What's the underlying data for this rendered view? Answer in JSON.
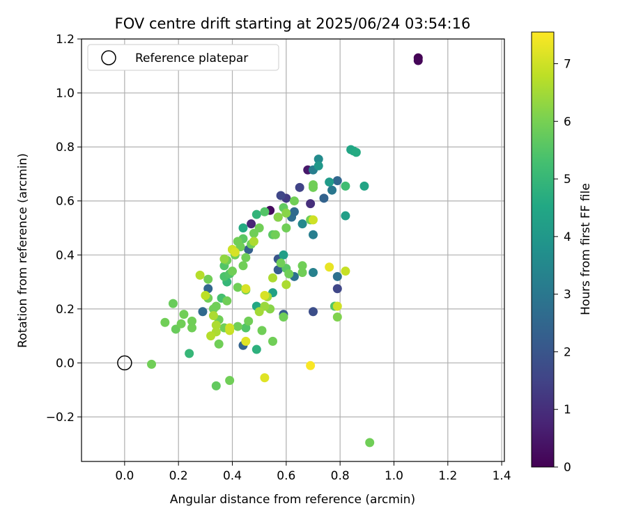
{
  "chart_data": {
    "type": "scatter",
    "title": "FOV centre drift starting at 2025/06/24 03:54:16",
    "xlabel": "Angular distance from reference (arcmin)",
    "ylabel": "Rotation from reference (arcmin)",
    "xlim": [
      -0.16,
      1.41
    ],
    "ylim": [
      -0.365,
      1.2
    ],
    "xticks": [
      "0.0",
      "0.2",
      "0.4",
      "0.6",
      "0.8",
      "1.0",
      "1.2",
      "1.4"
    ],
    "yticks": [
      "−0.2",
      "0.0",
      "0.2",
      "0.4",
      "0.6",
      "0.8",
      "1.0",
      "1.2"
    ],
    "grid": true,
    "legend": {
      "placement": "top-left",
      "entries": [
        "Reference platepar"
      ]
    },
    "reference_point": {
      "x": 0.0,
      "y": 0.0
    },
    "colorbar": {
      "label": "Hours from first FF file",
      "range": [
        0,
        7.55
      ],
      "ticks": [
        "0",
        "1",
        "2",
        "3",
        "4",
        "5",
        "6",
        "7"
      ],
      "colormap": "viridis"
    },
    "points": [
      {
        "x": 1.09,
        "y": 1.13,
        "c": 0.0
      },
      {
        "x": 1.09,
        "y": 1.12,
        "c": 0.1
      },
      {
        "x": 0.54,
        "y": 0.565,
        "c": 0.2
      },
      {
        "x": 0.68,
        "y": 0.715,
        "c": 0.5
      },
      {
        "x": 0.47,
        "y": 0.515,
        "c": 0.8
      },
      {
        "x": 0.69,
        "y": 0.59,
        "c": 1.0
      },
      {
        "x": 0.57,
        "y": 0.54,
        "c": 1.0
      },
      {
        "x": 0.6,
        "y": 0.61,
        "c": 1.3
      },
      {
        "x": 0.65,
        "y": 0.65,
        "c": 1.5
      },
      {
        "x": 0.58,
        "y": 0.62,
        "c": 1.6
      },
      {
        "x": 0.79,
        "y": 0.275,
        "c": 1.6
      },
      {
        "x": 0.7,
        "y": 0.19,
        "c": 1.8
      },
      {
        "x": 0.57,
        "y": 0.385,
        "c": 2.0
      },
      {
        "x": 0.57,
        "y": 0.345,
        "c": 2.2
      },
      {
        "x": 0.74,
        "y": 0.61,
        "c": 2.4
      },
      {
        "x": 0.79,
        "y": 0.675,
        "c": 2.5
      },
      {
        "x": 0.59,
        "y": 0.18,
        "c": 2.2
      },
      {
        "x": 0.31,
        "y": 0.275,
        "c": 2.5
      },
      {
        "x": 0.29,
        "y": 0.19,
        "c": 2.6
      },
      {
        "x": 0.44,
        "y": 0.065,
        "c": 2.4
      },
      {
        "x": 0.46,
        "y": 0.42,
        "c": 2.3
      },
      {
        "x": 0.62,
        "y": 0.54,
        "c": 2.7
      },
      {
        "x": 0.63,
        "y": 0.56,
        "c": 2.6
      },
      {
        "x": 0.63,
        "y": 0.32,
        "c": 2.8
      },
      {
        "x": 0.77,
        "y": 0.64,
        "c": 3.0
      },
      {
        "x": 0.79,
        "y": 0.32,
        "c": 2.8
      },
      {
        "x": 0.7,
        "y": 0.715,
        "c": 3.2
      },
      {
        "x": 0.7,
        "y": 0.335,
        "c": 3.3
      },
      {
        "x": 0.7,
        "y": 0.475,
        "c": 3.2
      },
      {
        "x": 0.72,
        "y": 0.755,
        "c": 3.6
      },
      {
        "x": 0.66,
        "y": 0.515,
        "c": 3.5
      },
      {
        "x": 0.72,
        "y": 0.73,
        "c": 4.0
      },
      {
        "x": 0.76,
        "y": 0.67,
        "c": 4.1
      },
      {
        "x": 0.82,
        "y": 0.545,
        "c": 4.2
      },
      {
        "x": 0.84,
        "y": 0.79,
        "c": 4.4
      },
      {
        "x": 0.85,
        "y": 0.785,
        "c": 4.5
      },
      {
        "x": 0.86,
        "y": 0.78,
        "c": 4.6
      },
      {
        "x": 0.89,
        "y": 0.655,
        "c": 4.4
      },
      {
        "x": 0.59,
        "y": 0.4,
        "c": 4.2
      },
      {
        "x": 0.55,
        "y": 0.26,
        "c": 4.3
      },
      {
        "x": 0.49,
        "y": 0.21,
        "c": 4.5
      },
      {
        "x": 0.49,
        "y": 0.05,
        "c": 4.8
      },
      {
        "x": 0.44,
        "y": 0.5,
        "c": 4.6
      },
      {
        "x": 0.38,
        "y": 0.3,
        "c": 5.0
      },
      {
        "x": 0.24,
        "y": 0.035,
        "c": 5.0
      },
      {
        "x": 0.49,
        "y": 0.55,
        "c": 4.9
      },
      {
        "x": 0.82,
        "y": 0.655,
        "c": 5.2
      },
      {
        "x": 0.78,
        "y": 0.21,
        "c": 5.5
      },
      {
        "x": 0.36,
        "y": 0.24,
        "c": 5.3
      },
      {
        "x": 0.37,
        "y": 0.36,
        "c": 5.5
      },
      {
        "x": 0.37,
        "y": 0.32,
        "c": 5.4
      },
      {
        "x": 0.39,
        "y": 0.33,
        "c": 5.5
      },
      {
        "x": 0.44,
        "y": 0.46,
        "c": 5.6
      },
      {
        "x": 0.52,
        "y": 0.56,
        "c": 5.5
      },
      {
        "x": 0.55,
        "y": 0.475,
        "c": 5.6
      },
      {
        "x": 0.59,
        "y": 0.575,
        "c": 5.7
      },
      {
        "x": 0.6,
        "y": 0.35,
        "c": 5.6
      },
      {
        "x": 0.45,
        "y": 0.13,
        "c": 5.5
      },
      {
        "x": 0.34,
        "y": -0.085,
        "c": 5.7
      },
      {
        "x": 0.18,
        "y": 0.22,
        "c": 5.8
      },
      {
        "x": 0.19,
        "y": 0.125,
        "c": 5.8
      },
      {
        "x": 0.15,
        "y": 0.15,
        "c": 5.9
      },
      {
        "x": 0.21,
        "y": 0.145,
        "c": 5.9
      },
      {
        "x": 0.22,
        "y": 0.18,
        "c": 5.9
      },
      {
        "x": 0.25,
        "y": 0.155,
        "c": 5.9
      },
      {
        "x": 0.25,
        "y": 0.13,
        "c": 5.9
      },
      {
        "x": 0.31,
        "y": 0.31,
        "c": 5.9
      },
      {
        "x": 0.31,
        "y": 0.24,
        "c": 5.9
      },
      {
        "x": 0.33,
        "y": 0.2,
        "c": 5.9
      },
      {
        "x": 0.34,
        "y": 0.21,
        "c": 5.9
      },
      {
        "x": 0.35,
        "y": 0.16,
        "c": 5.9
      },
      {
        "x": 0.35,
        "y": 0.07,
        "c": 5.9
      },
      {
        "x": 0.37,
        "y": 0.13,
        "c": 5.9
      },
      {
        "x": 0.38,
        "y": 0.23,
        "c": 5.9
      },
      {
        "x": 0.38,
        "y": 0.38,
        "c": 5.9
      },
      {
        "x": 0.4,
        "y": 0.34,
        "c": 5.9
      },
      {
        "x": 0.4,
        "y": 0.42,
        "c": 5.9
      },
      {
        "x": 0.41,
        "y": 0.4,
        "c": 5.9
      },
      {
        "x": 0.42,
        "y": 0.45,
        "c": 5.9
      },
      {
        "x": 0.42,
        "y": 0.28,
        "c": 5.9
      },
      {
        "x": 0.42,
        "y": 0.135,
        "c": 5.9
      },
      {
        "x": 0.43,
        "y": 0.43,
        "c": 5.9
      },
      {
        "x": 0.44,
        "y": 0.36,
        "c": 5.9
      },
      {
        "x": 0.45,
        "y": 0.39,
        "c": 5.9
      },
      {
        "x": 0.45,
        "y": 0.27,
        "c": 5.9
      },
      {
        "x": 0.46,
        "y": 0.155,
        "c": 5.9
      },
      {
        "x": 0.47,
        "y": 0.44,
        "c": 5.9
      },
      {
        "x": 0.48,
        "y": 0.48,
        "c": 5.9
      },
      {
        "x": 0.5,
        "y": 0.5,
        "c": 5.9
      },
      {
        "x": 0.51,
        "y": 0.12,
        "c": 5.9
      },
      {
        "x": 0.55,
        "y": 0.08,
        "c": 5.9
      },
      {
        "x": 0.56,
        "y": 0.475,
        "c": 5.9
      },
      {
        "x": 0.58,
        "y": 0.37,
        "c": 5.9
      },
      {
        "x": 0.59,
        "y": 0.17,
        "c": 5.9
      },
      {
        "x": 0.6,
        "y": 0.5,
        "c": 5.9
      },
      {
        "x": 0.61,
        "y": 0.33,
        "c": 5.9
      },
      {
        "x": 0.63,
        "y": 0.6,
        "c": 5.9
      },
      {
        "x": 0.66,
        "y": 0.36,
        "c": 5.9
      },
      {
        "x": 0.66,
        "y": 0.335,
        "c": 5.9
      },
      {
        "x": 0.69,
        "y": 0.53,
        "c": 5.9
      },
      {
        "x": 0.7,
        "y": 0.65,
        "c": 5.9
      },
      {
        "x": 0.7,
        "y": 0.66,
        "c": 5.9
      },
      {
        "x": 0.1,
        "y": -0.005,
        "c": 5.9
      },
      {
        "x": 0.39,
        "y": -0.065,
        "c": 5.9
      },
      {
        "x": 0.91,
        "y": -0.295,
        "c": 5.9
      },
      {
        "x": 0.79,
        "y": 0.17,
        "c": 6.1
      },
      {
        "x": 0.54,
        "y": 0.2,
        "c": 6.2
      },
      {
        "x": 0.57,
        "y": 0.54,
        "c": 6.2
      },
      {
        "x": 0.6,
        "y": 0.555,
        "c": 6.2
      },
      {
        "x": 0.37,
        "y": 0.385,
        "c": 6.3
      },
      {
        "x": 0.52,
        "y": 0.21,
        "c": 6.4
      },
      {
        "x": 0.53,
        "y": 0.245,
        "c": 6.5
      },
      {
        "x": 0.5,
        "y": 0.19,
        "c": 6.5
      },
      {
        "x": 0.48,
        "y": 0.45,
        "c": 6.6
      },
      {
        "x": 0.55,
        "y": 0.315,
        "c": 6.6
      },
      {
        "x": 0.6,
        "y": 0.29,
        "c": 6.6
      },
      {
        "x": 0.33,
        "y": 0.175,
        "c": 6.6
      },
      {
        "x": 0.34,
        "y": 0.14,
        "c": 6.6
      },
      {
        "x": 0.34,
        "y": 0.115,
        "c": 6.6
      },
      {
        "x": 0.32,
        "y": 0.1,
        "c": 6.7
      },
      {
        "x": 0.28,
        "y": 0.325,
        "c": 6.7
      },
      {
        "x": 0.3,
        "y": 0.25,
        "c": 6.8
      },
      {
        "x": 0.39,
        "y": 0.12,
        "c": 6.9
      },
      {
        "x": 0.39,
        "y": 0.13,
        "c": 7.0
      },
      {
        "x": 0.4,
        "y": 0.42,
        "c": 7.0
      },
      {
        "x": 0.41,
        "y": 0.41,
        "c": 7.1
      },
      {
        "x": 0.45,
        "y": 0.275,
        "c": 7.1
      },
      {
        "x": 0.52,
        "y": 0.25,
        "c": 7.1
      },
      {
        "x": 0.82,
        "y": 0.34,
        "c": 6.9
      },
      {
        "x": 0.79,
        "y": 0.21,
        "c": 7.0
      },
      {
        "x": 0.7,
        "y": 0.53,
        "c": 7.0
      },
      {
        "x": 0.45,
        "y": 0.08,
        "c": 7.2
      },
      {
        "x": 0.52,
        "y": -0.055,
        "c": 7.2
      },
      {
        "x": 0.76,
        "y": 0.355,
        "c": 7.3
      },
      {
        "x": 0.69,
        "y": -0.01,
        "c": 7.5
      }
    ]
  }
}
